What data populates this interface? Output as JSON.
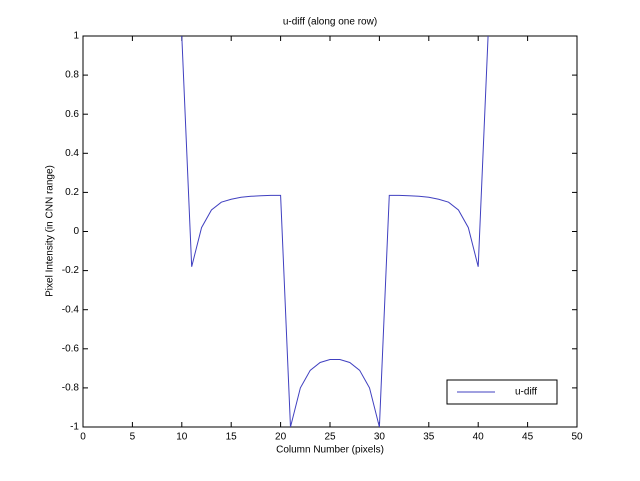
{
  "chart_data": {
    "type": "line",
    "title": "u-diff (along one row)",
    "x_label": "Column Number (pixels)",
    "y_label": "Pixel Intensity (in CNN range)",
    "x": [
      10,
      11,
      12,
      13,
      14,
      15,
      16,
      17,
      18,
      19,
      20,
      21,
      22,
      23,
      24,
      25,
      26,
      27,
      28,
      29,
      30,
      31,
      32,
      33,
      34,
      35,
      36,
      37,
      38,
      39,
      40,
      41
    ],
    "series": [
      {
        "name": "u-diff",
        "color": "#4040c0",
        "values": [
          1,
          -0.18,
          0.02,
          0.11,
          0.15,
          0.165,
          0.175,
          0.18,
          0.183,
          0.185,
          0.185,
          -1,
          -0.8,
          -0.71,
          -0.67,
          -0.655,
          -0.655,
          -0.67,
          -0.71,
          -0.8,
          -1,
          0.185,
          0.185,
          0.183,
          0.18,
          0.175,
          0.165,
          0.15,
          0.11,
          0.02,
          -0.18,
          1
        ]
      }
    ],
    "xlim": [
      0,
      50
    ],
    "xticks": [
      0,
      5,
      10,
      15,
      20,
      25,
      30,
      35,
      40,
      45,
      50
    ],
    "ylim": [
      -1,
      1
    ],
    "yticks": [
      -1,
      -0.8,
      -0.6,
      -0.4,
      -0.2,
      0,
      0.2,
      0.4,
      0.6,
      0.8,
      1
    ],
    "grid": false,
    "legend": "lower right"
  }
}
